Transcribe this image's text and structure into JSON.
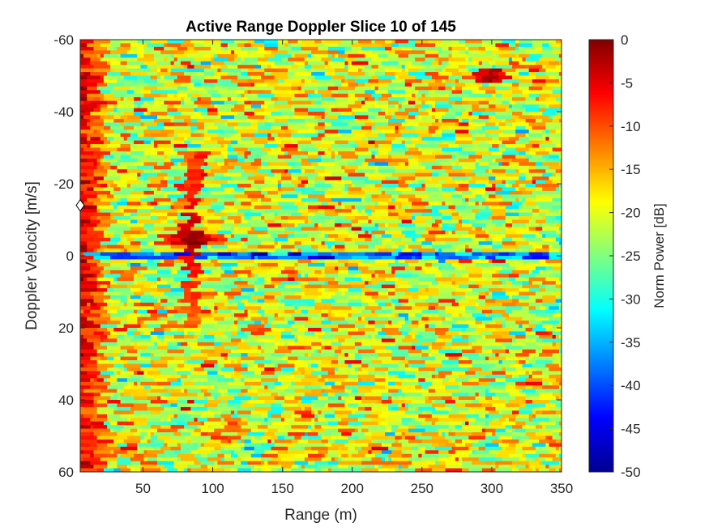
{
  "chart_data": {
    "type": "heatmap",
    "title": "Active Range Doppler Slice 10 of 145",
    "xlabel": "Range (m)",
    "ylabel": "Doppler Velocity [m/s]",
    "colorbar_label": "Norm Power [dB]",
    "colormap": "jet",
    "xlim": [
      5,
      350
    ],
    "ylim": [
      -60,
      60
    ],
    "y_reversed": true,
    "clim": [
      -50,
      0
    ],
    "x_ticks": [
      50,
      100,
      150,
      200,
      250,
      300,
      350
    ],
    "y_ticks": [
      -60,
      -40,
      -20,
      0,
      20,
      40,
      60
    ],
    "colorbar_ticks": [
      0,
      -5,
      -10,
      -15,
      -20,
      -25,
      -30,
      -35,
      -40,
      -45,
      -50
    ],
    "background_level_db": -20,
    "features": [
      {
        "kind": "near-range clutter band",
        "range_m": [
          5,
          22
        ],
        "power_db": -4
      },
      {
        "kind": "zero-Doppler notch",
        "doppler_m_s": 0,
        "range_m": [
          12,
          350
        ],
        "power_db": -38
      },
      {
        "kind": "target",
        "range_m": 85,
        "doppler_m_s": -5,
        "power_db": 0
      },
      {
        "kind": "target",
        "range_m": 300,
        "doppler_m_s": -50,
        "power_db": -2
      }
    ],
    "marker": {
      "shape": "diamond",
      "x": 5,
      "y": -14
    }
  }
}
